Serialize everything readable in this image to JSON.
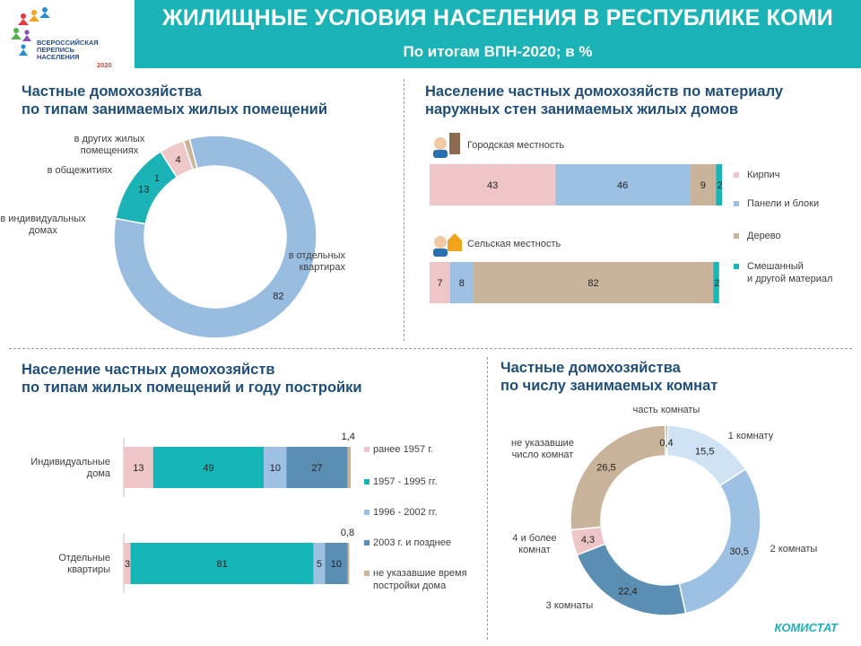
{
  "header": {
    "title": "ЖИЛИЩНЫЕ УСЛОВИЯ НАСЕЛЕНИЯ В РЕСПУБЛИКЕ КОМИ",
    "subtitle": "По итогам ВПН-2020; в %"
  },
  "logo": {
    "lines": [
      "ВСЕРОССИЙСКАЯ",
      "ПЕРЕПИСЬ",
      "НАСЕЛЕНИЯ"
    ],
    "year": "2020"
  },
  "footer": {
    "source": "КОМИСТАТ"
  },
  "sections": {
    "s1_title": [
      "Частные домохозяйства",
      "по типам занимаемых жилых помещений"
    ],
    "s2_title": [
      "Население частных домохозяйств по материалу",
      "наружных стен занимаемых жилых домов"
    ],
    "s3_title": [
      "Население частных домохозяйств",
      "по типам жилых помещений и году постройки"
    ],
    "s4_title": [
      "Частные домохозяйства",
      "по числу занимаемых комнат"
    ]
  },
  "chart_data": [
    {
      "id": "dwelling-types",
      "type": "pie",
      "title": "Частные домохозяйства по типам занимаемых жилых помещений",
      "slices": [
        {
          "label": "в отдельных квартирах",
          "value": 82,
          "value_label": "82",
          "color": "#99bde0"
        },
        {
          "label": "в индивидуальных домах",
          "value": 13,
          "value_label": "13",
          "color": "#1bb3b6"
        },
        {
          "label": "в общежитиях",
          "value": 4,
          "value_label": "4",
          "color": "#efc8c9"
        },
        {
          "label": "в других жилых помещениях",
          "value": 1,
          "value_label": "1",
          "color": "#c9b49a"
        }
      ]
    },
    {
      "id": "wall-material",
      "type": "bar",
      "orientation": "horizontal-stacked",
      "title": "Население частных домохозяйств по материалу наружных стен занимаемых жилых домов",
      "categories": [
        "Городская местность",
        "Сельская местность"
      ],
      "series": [
        {
          "name": "Кирпич",
          "color": "#eec6c8",
          "values": [
            43,
            7
          ]
        },
        {
          "name": "Панели и блоки",
          "color": "#9dc0e3",
          "values": [
            46,
            8
          ]
        },
        {
          "name": "Дерево",
          "color": "#c9b39a",
          "values": [
            9,
            82
          ]
        },
        {
          "name": "Смешанный и другой материал",
          "color": "#16b5b8",
          "values": [
            2,
            2
          ]
        }
      ]
    },
    {
      "id": "construction-year",
      "type": "bar",
      "orientation": "horizontal-stacked",
      "title": "Население частных домохозяйств по типам жилых помещений и году постройки",
      "categories": [
        "Индивидуальные дома",
        "Отдельные квартиры"
      ],
      "series": [
        {
          "name": "ранее 1957 г.",
          "color": "#eec6c8",
          "values": [
            13,
            3
          ],
          "labels": [
            "13",
            "3"
          ]
        },
        {
          "name": "1957 - 1995 гг.",
          "color": "#16b5b8",
          "values": [
            49,
            81
          ],
          "labels": [
            "49",
            "81"
          ]
        },
        {
          "name": "1996 - 2002 гг.",
          "color": "#9dc0e3",
          "values": [
            10,
            5
          ],
          "labels": [
            "10",
            "5"
          ]
        },
        {
          "name": "2003 г. и позднее",
          "color": "#5b8eb3",
          "values": [
            27,
            10
          ],
          "labels": [
            "27",
            "10"
          ]
        },
        {
          "name": "не указавшие время постройки дома",
          "color": "#c9b39a",
          "values": [
            1.4,
            0.8
          ],
          "labels": [
            "1,4",
            "0,8"
          ]
        }
      ]
    },
    {
      "id": "rooms",
      "type": "pie",
      "title": "Частные домохозяйства по числу занимаемых комнат",
      "slices": [
        {
          "label": "часть комнаты",
          "value": 0.4,
          "value_label": "0,4",
          "color": "#16b5b8"
        },
        {
          "label": "1 комнату",
          "value": 15.5,
          "value_label": "15,5",
          "color": "#cfe3f5"
        },
        {
          "label": "2 комнаты",
          "value": 30.5,
          "value_label": "30,5",
          "color": "#9dc0e3"
        },
        {
          "label": "3 комнаты",
          "value": 22.4,
          "value_label": "22,4",
          "color": "#5b8eb3"
        },
        {
          "label": "4 и более комнат",
          "value": 4.3,
          "value_label": "4,3",
          "color": "#eec6c8"
        },
        {
          "label": "не указавшие число комнат",
          "value": 26.5,
          "value_label": "26,5",
          "color": "#c9b39a"
        }
      ]
    }
  ]
}
